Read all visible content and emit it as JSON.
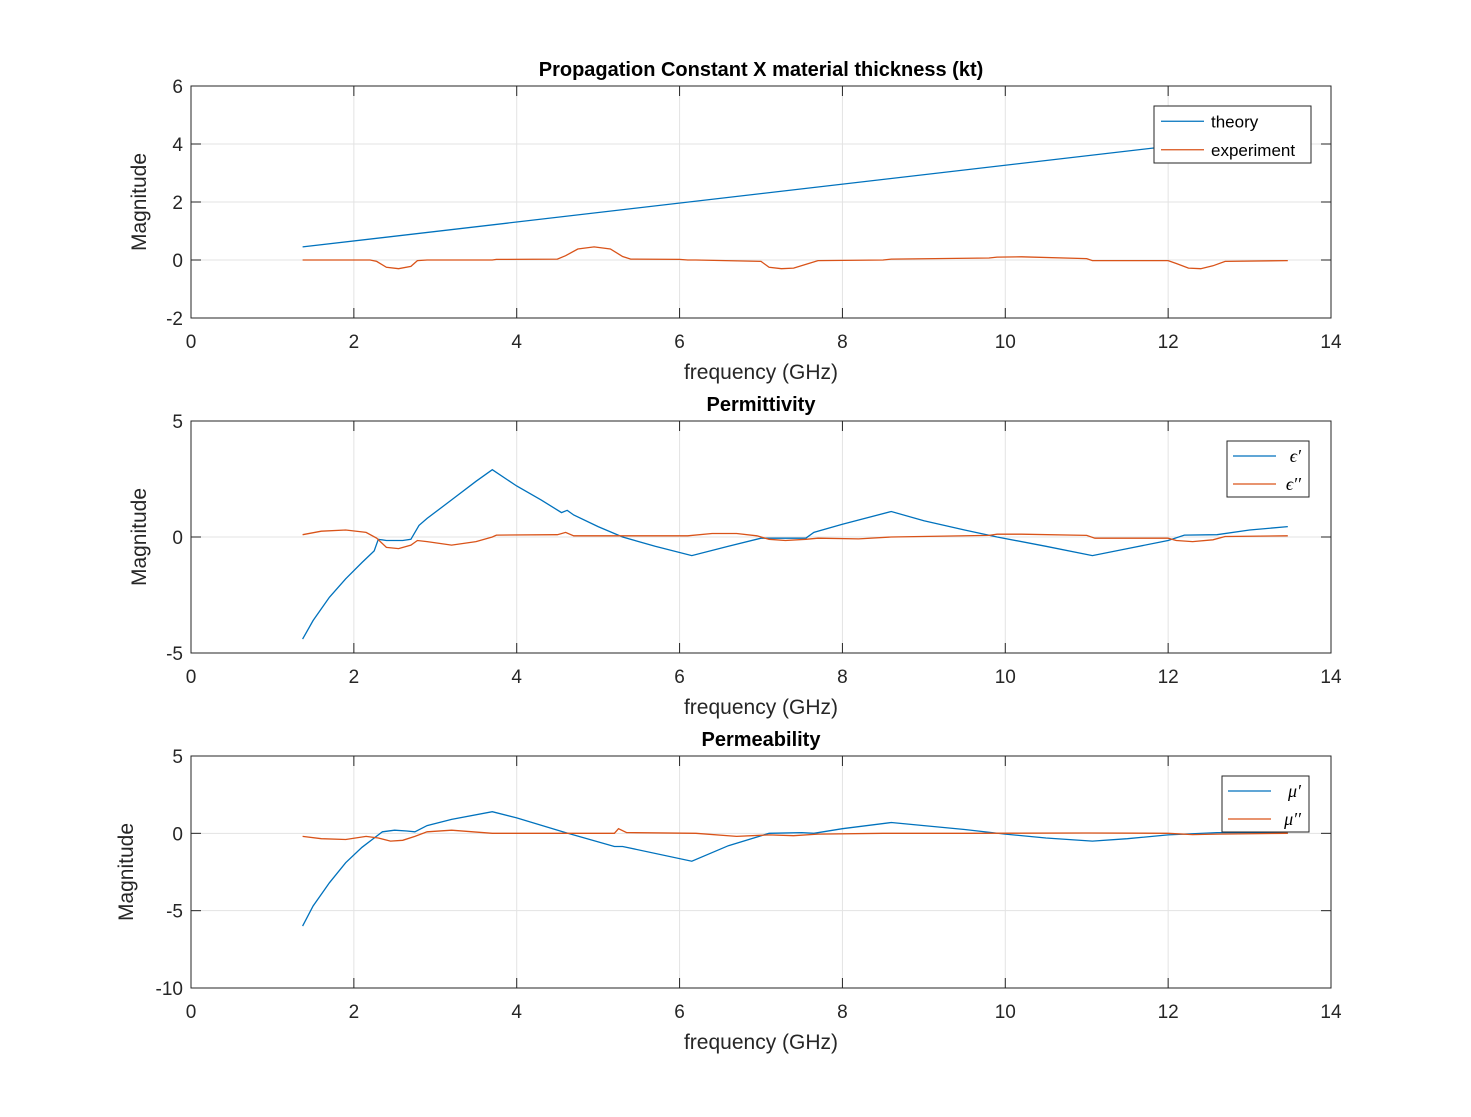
{
  "chart_data": [
    {
      "type": "line",
      "title": "Propagation Constant X material thickness (kt)",
      "xlabel": "frequency (GHz)",
      "ylabel": "Magnitude",
      "xlim": [
        0,
        14
      ],
      "ylim": [
        -2,
        6
      ],
      "xticks": [
        0,
        2,
        4,
        6,
        8,
        10,
        12,
        14
      ],
      "yticks": [
        -2,
        0,
        2,
        4,
        6
      ],
      "grid": true,
      "legend": "top-right",
      "legend_style": "text",
      "series": [
        {
          "name": "theory",
          "color": "#0072BD",
          "x": [
            1.37,
            13.47
          ],
          "y": [
            0.45,
            4.4
          ]
        },
        {
          "name": "experiment",
          "color": "#D95319",
          "x": [
            1.37,
            2.2,
            2.28,
            2.4,
            2.55,
            2.7,
            2.78,
            2.9,
            3.7,
            3.75,
            4.5,
            4.6,
            4.75,
            4.95,
            5.15,
            5.3,
            5.4,
            6.0,
            6.1,
            6.2,
            7.0,
            7.1,
            7.25,
            7.4,
            7.55,
            7.7,
            8.5,
            8.6,
            9.8,
            9.9,
            10.2,
            11.0,
            11.07,
            12.0,
            12.1,
            12.25,
            12.4,
            12.55,
            12.7,
            13.47
          ],
          "y": [
            0,
            0,
            -0.05,
            -0.25,
            -0.3,
            -0.22,
            -0.02,
            0,
            0,
            0.02,
            0.03,
            0.15,
            0.38,
            0.45,
            0.38,
            0.12,
            0.03,
            0.02,
            0,
            0,
            -0.05,
            -0.25,
            -0.3,
            -0.28,
            -0.15,
            -0.02,
            0,
            0.03,
            0.07,
            0.1,
            0.11,
            0.05,
            -0.02,
            -0.02,
            -0.12,
            -0.28,
            -0.3,
            -0.2,
            -0.05,
            -0.02
          ]
        }
      ]
    },
    {
      "type": "line",
      "title": "Permittivity",
      "xlabel": "frequency (GHz)",
      "ylabel": "Magnitude",
      "xlim": [
        0,
        14
      ],
      "ylim": [
        -5,
        5
      ],
      "xticks": [
        0,
        2,
        4,
        6,
        8,
        10,
        12,
        14
      ],
      "yticks": [
        -5,
        0,
        5
      ],
      "grid": true,
      "legend": "top-right",
      "legend_style": "math",
      "series": [
        {
          "name": "ϵ′",
          "color": "#0072BD",
          "x": [
            1.37,
            1.5,
            1.7,
            1.9,
            2.1,
            2.25,
            2.3,
            2.4,
            2.6,
            2.7,
            2.8,
            2.9,
            3.2,
            3.5,
            3.7,
            4.0,
            4.3,
            4.55,
            4.62,
            4.7,
            5.0,
            5.3,
            5.7,
            6.15,
            6.6,
            7.0,
            7.2,
            7.55,
            7.65,
            8.0,
            8.6,
            9.0,
            9.5,
            9.9,
            10.5,
            11.07,
            11.5,
            12.0,
            12.2,
            12.6,
            13.0,
            13.47
          ],
          "y": [
            -4.4,
            -3.6,
            -2.6,
            -1.8,
            -1.1,
            -0.6,
            -0.1,
            -0.15,
            -0.15,
            -0.1,
            0.5,
            0.8,
            1.6,
            2.4,
            2.9,
            2.2,
            1.6,
            1.05,
            1.15,
            0.95,
            0.45,
            0,
            -0.4,
            -0.8,
            -0.4,
            -0.05,
            -0.05,
            -0.05,
            0.2,
            0.55,
            1.1,
            0.7,
            0.3,
            0,
            -0.4,
            -0.8,
            -0.5,
            -0.15,
            0.08,
            0.1,
            0.3,
            0.45
          ]
        },
        {
          "name": "ϵ′′",
          "color": "#D95319",
          "x": [
            1.37,
            1.6,
            1.9,
            2.15,
            2.28,
            2.4,
            2.55,
            2.7,
            2.78,
            2.9,
            3.2,
            3.5,
            3.7,
            3.75,
            4.5,
            4.6,
            4.7,
            5.0,
            6.1,
            6.4,
            6.7,
            6.95,
            7.1,
            7.3,
            7.55,
            7.7,
            8.2,
            8.6,
            9.8,
            9.9,
            10.2,
            11.0,
            11.1,
            12.0,
            12.1,
            12.3,
            12.55,
            12.7,
            13.47
          ],
          "y": [
            0.1,
            0.25,
            0.3,
            0.2,
            -0.05,
            -0.45,
            -0.5,
            -0.35,
            -0.15,
            -0.2,
            -0.35,
            -0.2,
            0,
            0.08,
            0.1,
            0.2,
            0.05,
            0.05,
            0.05,
            0.15,
            0.15,
            0.05,
            -0.1,
            -0.15,
            -0.1,
            -0.05,
            -0.08,
            0,
            0.07,
            0.12,
            0.12,
            0.07,
            -0.05,
            -0.05,
            -0.15,
            -0.2,
            -0.12,
            0.02,
            0.05
          ]
        }
      ]
    },
    {
      "type": "line",
      "title": "Permeability",
      "xlabel": "frequency (GHz)",
      "ylabel": "Magnitude",
      "xlim": [
        0,
        14
      ],
      "ylim": [
        -10,
        5
      ],
      "xticks": [
        0,
        2,
        4,
        6,
        8,
        10,
        12,
        14
      ],
      "yticks": [
        -10,
        -5,
        0,
        5
      ],
      "grid": true,
      "legend": "top-right",
      "legend_style": "math",
      "series": [
        {
          "name": "μ′",
          "color": "#0072BD",
          "x": [
            1.37,
            1.5,
            1.7,
            1.9,
            2.1,
            2.25,
            2.35,
            2.5,
            2.65,
            2.75,
            2.9,
            3.2,
            3.7,
            4.0,
            4.6,
            5.2,
            5.3,
            6.15,
            6.6,
            7.1,
            7.5,
            7.65,
            8.0,
            8.6,
            9.0,
            9.5,
            10.0,
            10.5,
            11.07,
            11.5,
            12.0,
            12.6,
            13.0,
            13.47
          ],
          "y": [
            -6.0,
            -4.7,
            -3.2,
            -1.9,
            -0.9,
            -0.3,
            0.1,
            0.2,
            0.15,
            0.1,
            0.5,
            0.9,
            1.4,
            1.0,
            0.05,
            -0.85,
            -0.85,
            -1.8,
            -0.8,
            0,
            0.05,
            0,
            0.3,
            0.7,
            0.5,
            0.25,
            -0.05,
            -0.3,
            -0.5,
            -0.35,
            -0.1,
            0.05,
            0.05,
            0
          ]
        },
        {
          "name": "μ′′",
          "color": "#D95319",
          "x": [
            1.37,
            1.6,
            1.9,
            2.15,
            2.3,
            2.45,
            2.6,
            2.75,
            2.9,
            3.2,
            3.7,
            4.5,
            5.2,
            5.25,
            5.35,
            6.2,
            6.7,
            7.1,
            7.4,
            7.7,
            8.5,
            9.5,
            11.0,
            12.0,
            12.3,
            12.6,
            13.47
          ],
          "y": [
            -0.2,
            -0.35,
            -0.4,
            -0.2,
            -0.3,
            -0.5,
            -0.45,
            -0.2,
            0.1,
            0.2,
            0,
            0,
            0,
            0.3,
            0.05,
            0,
            -0.2,
            -0.1,
            -0.15,
            -0.05,
            0,
            0,
            0.02,
            0,
            -0.08,
            -0.05,
            0
          ]
        }
      ]
    }
  ]
}
